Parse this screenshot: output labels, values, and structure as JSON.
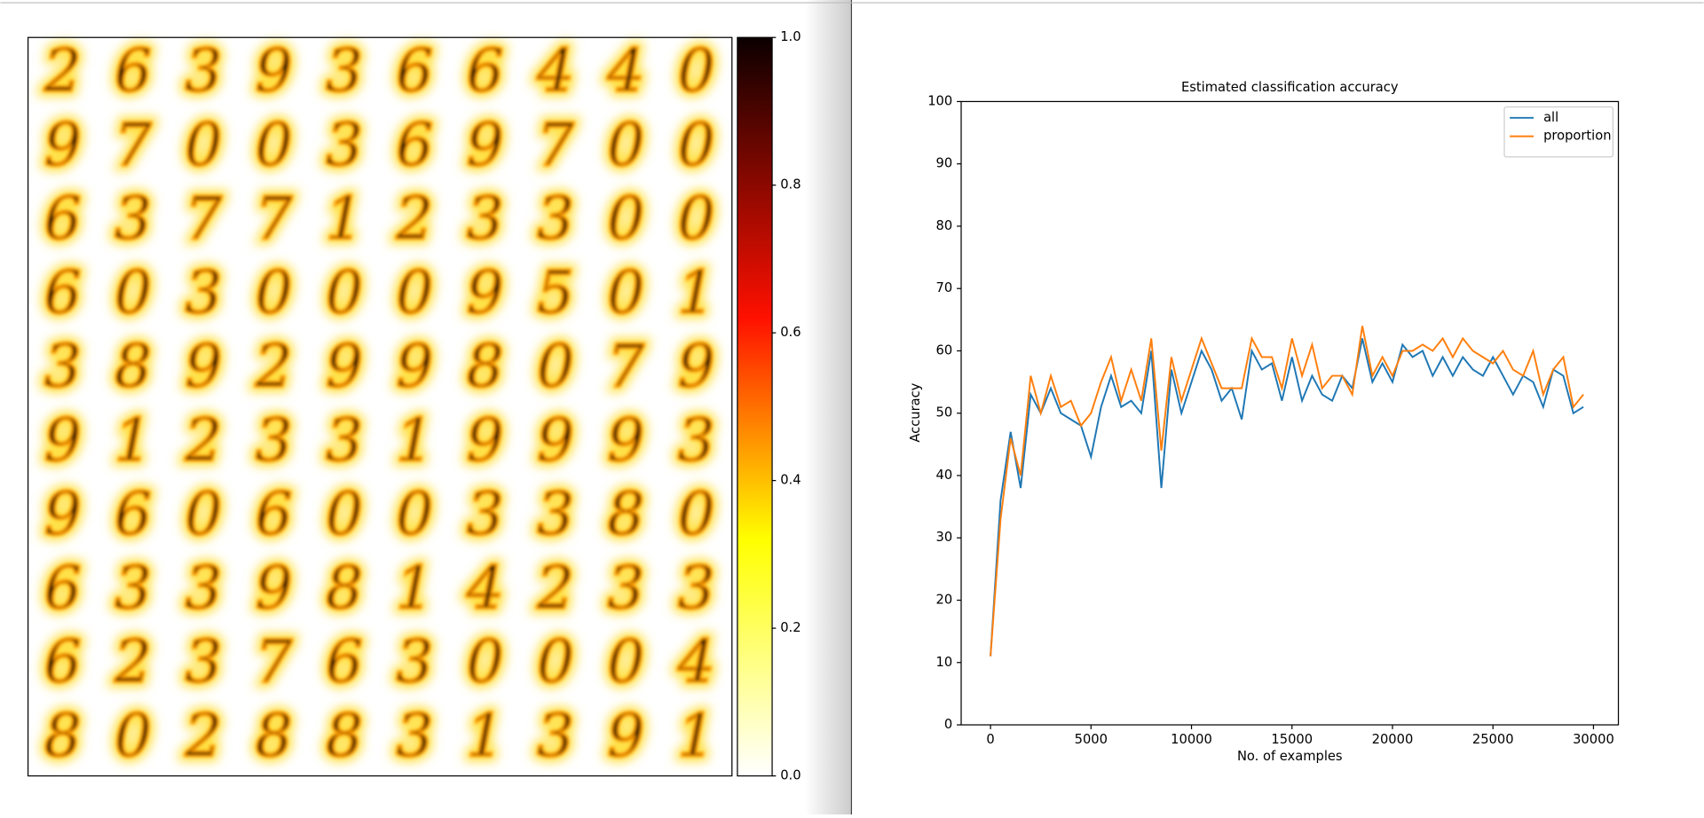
{
  "image_grid": {
    "digits": [
      [
        "2",
        "6",
        "3",
        "9",
        "3",
        "6",
        "6",
        "4",
        "4",
        "0"
      ],
      [
        "9",
        "7",
        "0",
        "0",
        "3",
        "6",
        "9",
        "7",
        "0",
        "0"
      ],
      [
        "6",
        "3",
        "7",
        "7",
        "1",
        "2",
        "3",
        "3",
        "0",
        "0"
      ],
      [
        "6",
        "0",
        "3",
        "0",
        "0",
        "0",
        "9",
        "5",
        "0",
        "1"
      ],
      [
        "3",
        "8",
        "9",
        "2",
        "9",
        "9",
        "8",
        "0",
        "7",
        "9"
      ],
      [
        "9",
        "1",
        "2",
        "3",
        "3",
        "1",
        "9",
        "9",
        "9",
        "3"
      ],
      [
        "9",
        "6",
        "0",
        "6",
        "0",
        "0",
        "3",
        "3",
        "8",
        "0"
      ],
      [
        "6",
        "3",
        "3",
        "9",
        "8",
        "1",
        "4",
        "2",
        "3",
        "3"
      ],
      [
        "6",
        "2",
        "3",
        "7",
        "6",
        "3",
        "0",
        "0",
        "0",
        "4"
      ],
      [
        "8",
        "0",
        "2",
        "8",
        "8",
        "3",
        "1",
        "3",
        "9",
        "1"
      ]
    ]
  },
  "colorbar": {
    "ylim": [
      0,
      1
    ],
    "yticks": [
      {
        "value": 0,
        "label": "0.0"
      },
      {
        "value": 0.2,
        "label": "0.2"
      },
      {
        "value": 0.4,
        "label": "0.4"
      },
      {
        "value": 0.6,
        "label": "0.6"
      },
      {
        "value": 0.8,
        "label": "0.8"
      },
      {
        "value": 1,
        "label": "1.0"
      }
    ]
  },
  "chart_data": {
    "type": "line",
    "title": "Estimated classification accuracy",
    "xlabel": "No. of examples",
    "ylabel": "Accuracy",
    "x": [
      0,
      500,
      1000,
      1500,
      2000,
      2500,
      3000,
      3500,
      4000,
      4500,
      5000,
      5500,
      6000,
      6500,
      7000,
      7500,
      8000,
      8500,
      9000,
      9500,
      10000,
      10500,
      11000,
      11500,
      12000,
      12500,
      13000,
      13500,
      14000,
      14500,
      15000,
      15500,
      16000,
      16500,
      17000,
      17500,
      18000,
      18500,
      19000,
      19500,
      20000,
      20500,
      21000,
      21500,
      22000,
      22500,
      23000,
      23500,
      24000,
      24500,
      25000,
      25500,
      26000,
      26500,
      27000,
      27500,
      28000,
      28500,
      29000,
      29500
    ],
    "series": [
      {
        "name": "all",
        "color": "#1f77b4",
        "values": [
          11,
          36,
          47,
          38,
          53,
          50,
          54,
          50,
          49,
          48,
          43,
          51,
          56,
          51,
          52,
          50,
          60,
          38,
          57,
          50,
          55,
          60,
          57,
          52,
          54,
          49,
          60,
          57,
          58,
          52,
          59,
          52,
          56,
          53,
          52,
          56,
          54,
          62,
          55,
          58,
          55,
          61,
          59,
          60,
          56,
          59,
          56,
          59,
          57,
          56,
          59,
          56,
          53,
          56,
          55,
          51,
          57,
          56,
          50,
          51
        ]
      },
      {
        "name": "proportion",
        "color": "#ff7f0e",
        "values": [
          11,
          33,
          46,
          40,
          56,
          50,
          56,
          51,
          52,
          48,
          50,
          55,
          59,
          52,
          57,
          52,
          62,
          44,
          59,
          52,
          57,
          62,
          58,
          54,
          54,
          54,
          62,
          59,
          59,
          54,
          62,
          56,
          61,
          54,
          56,
          56,
          53,
          64,
          56,
          59,
          56,
          60,
          60,
          61,
          60,
          62,
          59,
          62,
          60,
          59,
          58,
          60,
          57,
          56,
          60,
          53,
          57,
          59,
          51,
          53
        ]
      }
    ],
    "xlim": [
      -1460,
      31240
    ],
    "xticks": [
      0,
      5000,
      10000,
      15000,
      20000,
      25000,
      30000
    ],
    "ylim": [
      0,
      100
    ],
    "yticks": [
      0,
      10,
      20,
      30,
      40,
      50,
      60,
      70,
      80,
      90,
      100
    ],
    "legend": "upper right"
  }
}
